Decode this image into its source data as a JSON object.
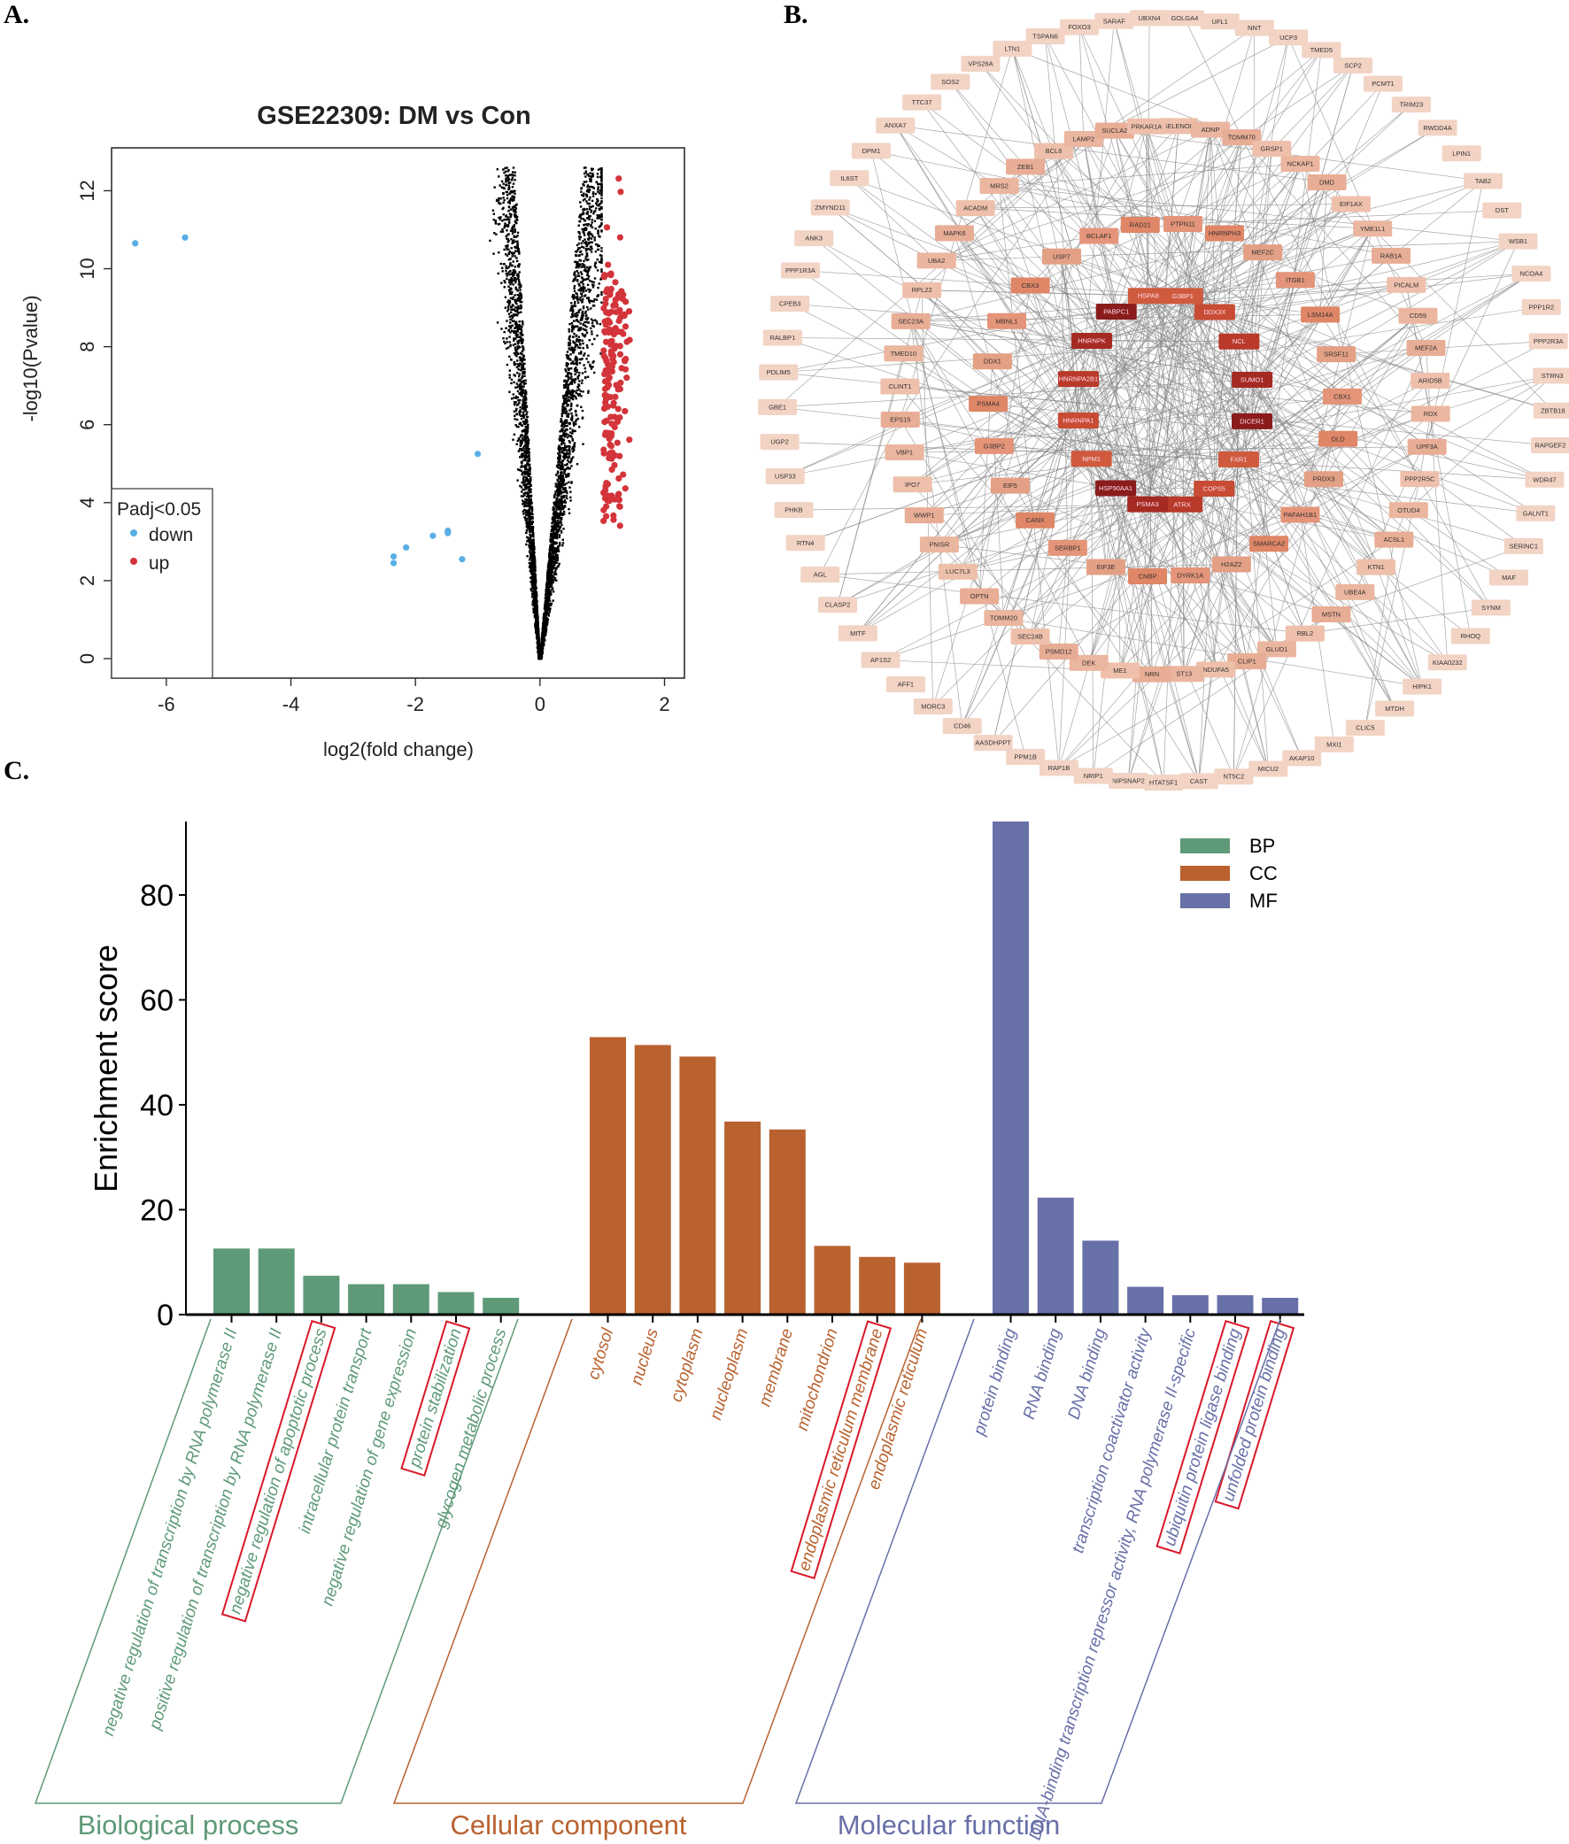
{
  "panels": {
    "a": "A.",
    "b": "B.",
    "c": "C."
  },
  "colors": {
    "down": "#5aaee6",
    "up": "#d3343a",
    "ns": "#000000",
    "BP": "#5e9a78",
    "CC": "#b9622f",
    "MF": "#6870a8",
    "highlight": "#d9182a",
    "edge": "#8a8a8a"
  },
  "chart_data": [
    {
      "type": "scatter",
      "title": "GSE22309: DM vs Con",
      "xlabel": "log2(fold change)",
      "ylabel": "-log10(Pvalue)",
      "xlim": [
        -6.88,
        2.32
      ],
      "ylim": [
        -0.5,
        13.1
      ],
      "xticks": [
        "-6",
        "-4",
        "-2",
        "0",
        "2"
      ],
      "yticks": [
        "0",
        "2",
        "4",
        "6",
        "8",
        "10",
        "12"
      ],
      "legend": {
        "title": "Padj<0.05",
        "placement": "bottom-left",
        "entries": [
          "down",
          "up"
        ]
      },
      "series": [
        {
          "name": "down",
          "points": [
            [
              -6.5,
              10.65
            ],
            [
              -5.7,
              10.8
            ],
            [
              -1.0,
              5.25
            ],
            [
              -1.48,
              3.28
            ],
            [
              -1.48,
              3.22
            ],
            [
              -1.72,
              3.15
            ],
            [
              -2.15,
              2.85
            ],
            [
              -2.35,
              2.62
            ],
            [
              -2.35,
              2.45
            ],
            [
              -1.25,
              2.55
            ]
          ]
        },
        {
          "name": "up",
          "x_range": [
            1.0,
            2.0
          ],
          "y_range": [
            3.4,
            12.4
          ],
          "approx_count": 180
        },
        {
          "name": "not significant",
          "x_range": [
            -0.85,
            1.0
          ],
          "y_range": [
            0,
            12.6
          ],
          "approx_count": 9000
        }
      ]
    },
    {
      "type": "network",
      "nodes_outer": [
        "GOLGA4",
        "UFL1",
        "NNT",
        "UCP3",
        "TMED5",
        "SCP2",
        "PCMT1",
        "TRIM23",
        "RWDD4A",
        "LPIN1",
        "TAB2",
        "DST",
        "WSB1",
        "NCOA4",
        "PPP1R2",
        "PPP2R3A",
        "STRN3",
        "ZBTB18",
        "RAPGEF2",
        "WDR47",
        "GALNT1",
        "SERINC1",
        "MAF",
        "SYNM",
        "RHOQ",
        "KIAA0232",
        "HIPK1",
        "MTDH",
        "CLIC5",
        "MXI1",
        "AKAP10",
        "MICU2",
        "NT5C2",
        "CAST",
        "HTATSF1",
        "NIPSNAP2",
        "NRIP1",
        "RAP1B",
        "PPM1B",
        "AASDHPPT",
        "CD46",
        "MORC3",
        "AFF1",
        "AP1S2",
        "MITF",
        "CLASP2",
        "AGL",
        "RTN4",
        "PHKB",
        "USP33",
        "UGP2",
        "GBE1",
        "PDLIM5",
        "RALBP1",
        "CPEB3",
        "PPP1R3A",
        "ANK3",
        "ZMYND11",
        "IL6ST",
        "DPM1",
        "ANXA7",
        "TTC37",
        "SOS2",
        "VPS26A",
        "LTN1",
        "TSPAN6",
        "FOXO3",
        "SARAF",
        "UBXN4"
      ],
      "nodes_middle": [
        "SELENOP",
        "ADNP",
        "TOMM70",
        "GRSP1",
        "NCKAP1",
        "DMD",
        "EIF1AX",
        "YME1L1",
        "RAB1A",
        "PICALM",
        "CD59",
        "MEF2A",
        "ARID5B",
        "RDX",
        "UPF3A",
        "PPP2R5C",
        "OTUD4",
        "ACSL1",
        "KTN1",
        "UBE4A",
        "MSTN",
        "RBL2",
        "GLUD1",
        "CLIP1",
        "NDUFA5",
        "ST13",
        "NRN",
        "ME1",
        "DEK",
        "PSMD12",
        "SEC24B",
        "TOMM20",
        "OPTN",
        "LUC7L3",
        "PNISR",
        "WWP1",
        "IPO7",
        "VBP1",
        "EPS15",
        "CLINT1",
        "TMED10",
        "SEC23A",
        "RPL22",
        "UBA2",
        "MAPK6",
        "ACADM",
        "MRS2",
        "ZEB1",
        "BCL6",
        "LAMP2",
        "SUCLA2",
        "PRKAR1A"
      ],
      "nodes_inner": [
        "PTPN11",
        "HNRNPH3",
        "MEF2C",
        "ITGB1",
        "LSM14A",
        "SRSF11",
        "CBX1",
        "DLD",
        "PRDX3",
        "PAFAH1B1",
        "SMARCA2",
        "H2AZ2",
        "DYRK1A",
        "CNBP",
        "EIF3E",
        "SERBP1",
        "CANX",
        "EIF5",
        "G3BP2",
        "PSMA4",
        "DDX1",
        "MBNL1",
        "CBX3",
        "USP7",
        "BCLAF1",
        "RAD21"
      ],
      "nodes_core": [
        "G3BP1",
        "DDX3X",
        "NCL",
        "SUMO1",
        "DICER1",
        "FXR1",
        "COPS5",
        "ATRX",
        "PSMA3",
        "HSP90AA1",
        "NPM1",
        "HNRNPA1",
        "HNRNPA2B1",
        "HNRNPK",
        "PABPC1",
        "HSPA8"
      ]
    },
    {
      "type": "bar",
      "ylabel": "Enrichment score",
      "ylim": [
        0,
        94
      ],
      "yticks": [
        "0",
        "20",
        "40",
        "60",
        "80"
      ],
      "legend": {
        "placement": "top-right",
        "entries": [
          "BP",
          "CC",
          "MF"
        ]
      },
      "groups": [
        {
          "key": "BP",
          "name": "Biological process",
          "categories": [
            {
              "label": "negative regulation of transcription by RNA polymerase II",
              "value": 12.6,
              "highlight": false
            },
            {
              "label": "positive regulation of transcription by RNA polymerase II",
              "value": 12.6,
              "highlight": false
            },
            {
              "label": "negative regulation of apoptotic process",
              "value": 7.4,
              "highlight": true
            },
            {
              "label": "intracellular protein transport",
              "value": 5.8,
              "highlight": false
            },
            {
              "label": "negative regulation of gene expression",
              "value": 5.8,
              "highlight": false
            },
            {
              "label": "protein stabilization",
              "value": 4.3,
              "highlight": true
            },
            {
              "label": "glycogen metabolic process",
              "value": 3.2,
              "highlight": false
            }
          ]
        },
        {
          "key": "CC",
          "name": "Cellular component",
          "categories": [
            {
              "label": "cytosol",
              "value": 52.9,
              "highlight": false
            },
            {
              "label": "nucleus",
              "value": 51.4,
              "highlight": false
            },
            {
              "label": "cytoplasm",
              "value": 49.2,
              "highlight": false
            },
            {
              "label": "nucleoplasm",
              "value": 36.8,
              "highlight": false
            },
            {
              "label": "membrane",
              "value": 35.3,
              "highlight": false
            },
            {
              "label": "mitochondrion",
              "value": 13.1,
              "highlight": false
            },
            {
              "label": "endoplasmic reticulum membrane",
              "value": 11.0,
              "highlight": true
            },
            {
              "label": "endoplasmic reticulum",
              "value": 9.9,
              "highlight": false
            }
          ]
        },
        {
          "key": "MF",
          "name": "Molecular function",
          "categories": [
            {
              "label": "protein binding",
              "value": 94,
              "highlight": false
            },
            {
              "label": "RNA binding",
              "value": 22.3,
              "highlight": false
            },
            {
              "label": "DNA binding",
              "value": 14.1,
              "highlight": false
            },
            {
              "label": "transcription coactivator activity",
              "value": 5.3,
              "highlight": false
            },
            {
              "label": "DNA-binding transcription repressor activity, RNA polymerase II-specific",
              "value": 3.7,
              "highlight": false
            },
            {
              "label": "ubiquitin protein ligase binding",
              "value": 3.7,
              "highlight": true
            },
            {
              "label": "unfolded protein binding",
              "value": 3.2,
              "highlight": true
            }
          ]
        }
      ]
    }
  ]
}
